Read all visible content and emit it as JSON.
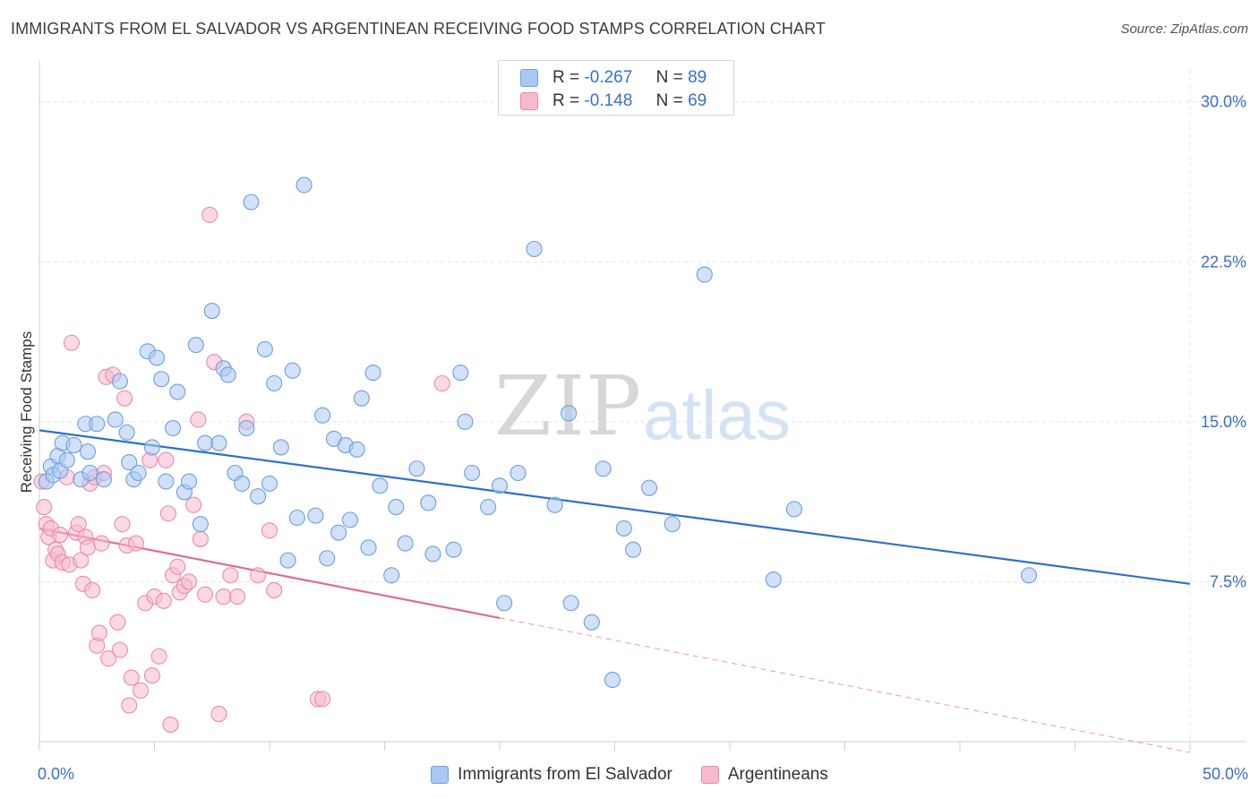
{
  "header": {
    "title": "IMMIGRANTS FROM EL SALVADOR VS ARGENTINEAN RECEIVING FOOD STAMPS CORRELATION CHART",
    "source": "Source: ZipAtlas.com"
  },
  "watermark": {
    "zip": "ZIP",
    "atlas": "atlas"
  },
  "stats": {
    "rows": [
      {
        "r_label": "R =",
        "r_value": "-0.267",
        "n_label": "N =",
        "n_value": "89"
      },
      {
        "r_label": "R =",
        "r_value": "-0.148",
        "n_label": "N =",
        "n_value": "69"
      }
    ]
  },
  "chart_data": {
    "type": "scatter",
    "title": "IMMIGRANTS FROM EL SALVADOR VS ARGENTINEAN RECEIVING FOOD STAMPS CORRELATION CHART",
    "ylabel": "Receiving Food Stamps",
    "xlabel": "",
    "xlim": [
      0,
      50
    ],
    "ylim": [
      0,
      31.5
    ],
    "x_tick_labels": [
      {
        "value": 0,
        "label": "0.0%"
      },
      {
        "value": 50,
        "label": "50.0%"
      }
    ],
    "y_tick_labels": [
      {
        "value": 7.5,
        "label": "7.5%"
      },
      {
        "value": 15,
        "label": "15.0%"
      },
      {
        "value": 22.5,
        "label": "22.5%"
      },
      {
        "value": 30,
        "label": "30.0%"
      }
    ],
    "grid": true,
    "legend_position": "bottom-center",
    "colors": {
      "blue_fill": "#aac9f2",
      "blue_stroke": "#6f9ee0",
      "blue_line": "#2f6fd1",
      "pink_fill": "#f7b9cd",
      "pink_stroke": "#eb8aaa",
      "pink_line": "#e06b95",
      "tick_label": "#3a6fcf"
    },
    "series": [
      {
        "name": "Immigrants from El Salvador",
        "color": "blue",
        "trend": {
          "x": [
            0,
            50
          ],
          "y": [
            14.6,
            7.4
          ]
        },
        "points": [
          [
            0.3,
            12.2
          ],
          [
            0.5,
            12.9
          ],
          [
            0.6,
            12.5
          ],
          [
            0.8,
            13.4
          ],
          [
            0.9,
            12.7
          ],
          [
            1.0,
            14.0
          ],
          [
            1.2,
            13.2
          ],
          [
            1.5,
            13.9
          ],
          [
            1.8,
            12.3
          ],
          [
            2.0,
            14.9
          ],
          [
            2.1,
            13.6
          ],
          [
            2.2,
            12.6
          ],
          [
            2.5,
            14.9
          ],
          [
            2.8,
            12.3
          ],
          [
            3.3,
            15.1
          ],
          [
            3.5,
            16.9
          ],
          [
            3.8,
            14.5
          ],
          [
            3.9,
            13.1
          ],
          [
            4.1,
            12.3
          ],
          [
            4.3,
            12.6
          ],
          [
            4.7,
            18.3
          ],
          [
            4.9,
            13.8
          ],
          [
            5.1,
            18.0
          ],
          [
            5.3,
            17.0
          ],
          [
            5.5,
            12.2
          ],
          [
            5.8,
            14.7
          ],
          [
            6.0,
            16.4
          ],
          [
            6.3,
            11.7
          ],
          [
            6.5,
            12.2
          ],
          [
            6.8,
            18.6
          ],
          [
            7.0,
            10.2
          ],
          [
            7.2,
            14.0
          ],
          [
            7.5,
            20.2
          ],
          [
            7.8,
            14.0
          ],
          [
            8.0,
            17.5
          ],
          [
            8.2,
            17.2
          ],
          [
            8.5,
            12.6
          ],
          [
            8.8,
            12.1
          ],
          [
            9.0,
            14.7
          ],
          [
            9.2,
            25.3
          ],
          [
            9.5,
            11.5
          ],
          [
            9.8,
            18.4
          ],
          [
            10.0,
            12.1
          ],
          [
            10.2,
            16.8
          ],
          [
            10.5,
            13.8
          ],
          [
            10.8,
            8.5
          ],
          [
            11.0,
            17.4
          ],
          [
            11.2,
            10.5
          ],
          [
            11.5,
            26.1
          ],
          [
            12.0,
            10.6
          ],
          [
            12.3,
            15.3
          ],
          [
            12.5,
            8.6
          ],
          [
            12.8,
            14.2
          ],
          [
            13.0,
            9.8
          ],
          [
            13.3,
            13.9
          ],
          [
            13.5,
            10.4
          ],
          [
            13.8,
            13.7
          ],
          [
            14.0,
            16.1
          ],
          [
            14.3,
            9.1
          ],
          [
            14.5,
            17.3
          ],
          [
            14.8,
            12.0
          ],
          [
            15.3,
            7.8
          ],
          [
            15.5,
            11.0
          ],
          [
            15.9,
            9.3
          ],
          [
            16.4,
            12.8
          ],
          [
            16.9,
            11.2
          ],
          [
            17.1,
            8.8
          ],
          [
            18.0,
            9.0
          ],
          [
            18.3,
            17.3
          ],
          [
            18.5,
            15.0
          ],
          [
            18.8,
            12.6
          ],
          [
            19.5,
            11.0
          ],
          [
            20.0,
            12.0
          ],
          [
            20.2,
            6.5
          ],
          [
            20.8,
            12.6
          ],
          [
            21.5,
            23.1
          ],
          [
            22.4,
            11.1
          ],
          [
            23.0,
            15.4
          ],
          [
            23.1,
            6.5
          ],
          [
            24.0,
            5.6
          ],
          [
            24.5,
            12.8
          ],
          [
            24.9,
            2.9
          ],
          [
            25.4,
            10.0
          ],
          [
            25.8,
            9.0
          ],
          [
            26.5,
            11.9
          ],
          [
            27.5,
            10.2
          ],
          [
            28.9,
            21.9
          ],
          [
            31.9,
            7.6
          ],
          [
            32.8,
            10.9
          ],
          [
            43.0,
            7.8
          ]
        ]
      },
      {
        "name": "Argentineans",
        "color": "pink",
        "trend": {
          "x": [
            0,
            20
          ],
          "y": [
            10.0,
            5.8
          ]
        },
        "trend_dashed": {
          "x": [
            20,
            50
          ],
          "y": [
            5.8,
            -0.5
          ]
        },
        "points": [
          [
            0.1,
            12.2
          ],
          [
            0.2,
            11.0
          ],
          [
            0.3,
            10.2
          ],
          [
            0.4,
            9.6
          ],
          [
            0.5,
            10.0
          ],
          [
            0.6,
            8.5
          ],
          [
            0.7,
            9.0
          ],
          [
            0.8,
            8.8
          ],
          [
            0.9,
            9.7
          ],
          [
            1.0,
            8.4
          ],
          [
            1.2,
            12.4
          ],
          [
            1.3,
            8.3
          ],
          [
            1.4,
            18.7
          ],
          [
            1.6,
            9.8
          ],
          [
            1.7,
            10.2
          ],
          [
            1.8,
            8.5
          ],
          [
            1.9,
            7.4
          ],
          [
            2.0,
            9.6
          ],
          [
            2.1,
            9.1
          ],
          [
            2.2,
            12.1
          ],
          [
            2.3,
            7.1
          ],
          [
            2.4,
            12.4
          ],
          [
            2.5,
            4.5
          ],
          [
            2.6,
            5.1
          ],
          [
            2.7,
            9.3
          ],
          [
            2.8,
            12.6
          ],
          [
            2.9,
            17.1
          ],
          [
            3.0,
            3.9
          ],
          [
            3.2,
            17.2
          ],
          [
            3.4,
            5.6
          ],
          [
            3.5,
            4.3
          ],
          [
            3.6,
            10.2
          ],
          [
            3.7,
            16.1
          ],
          [
            3.8,
            9.2
          ],
          [
            3.9,
            1.7
          ],
          [
            4.0,
            3.0
          ],
          [
            4.2,
            9.3
          ],
          [
            4.4,
            2.4
          ],
          [
            4.6,
            6.5
          ],
          [
            4.8,
            13.2
          ],
          [
            4.9,
            3.1
          ],
          [
            5.0,
            6.8
          ],
          [
            5.2,
            4.0
          ],
          [
            5.4,
            6.6
          ],
          [
            5.5,
            13.2
          ],
          [
            5.6,
            10.7
          ],
          [
            5.7,
            0.8
          ],
          [
            5.8,
            7.8
          ],
          [
            6.0,
            8.2
          ],
          [
            6.1,
            7.0
          ],
          [
            6.3,
            7.3
          ],
          [
            6.5,
            7.5
          ],
          [
            6.7,
            11.1
          ],
          [
            6.9,
            15.1
          ],
          [
            7.0,
            9.5
          ],
          [
            7.2,
            6.9
          ],
          [
            7.4,
            24.7
          ],
          [
            7.6,
            17.8
          ],
          [
            7.8,
            1.3
          ],
          [
            8.0,
            6.8
          ],
          [
            8.3,
            7.8
          ],
          [
            8.6,
            6.8
          ],
          [
            9.0,
            15.0
          ],
          [
            9.5,
            7.8
          ],
          [
            10.0,
            9.9
          ],
          [
            10.2,
            7.1
          ],
          [
            12.1,
            2.0
          ],
          [
            12.3,
            2.0
          ],
          [
            17.5,
            16.8
          ]
        ]
      }
    ]
  },
  "legend": {
    "items": [
      {
        "label": "Immigrants from El Salvador"
      },
      {
        "label": "Argentineans"
      }
    ]
  }
}
